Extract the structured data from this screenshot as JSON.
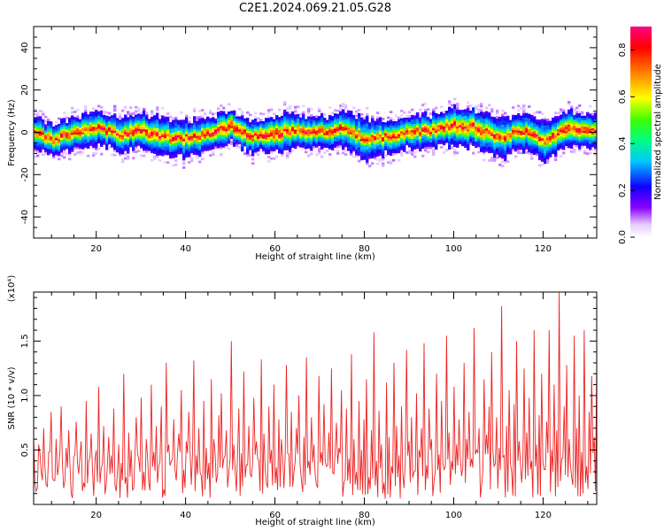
{
  "title": "C2E1.2024.069.21.05.G28",
  "colors": {
    "snr_line": "#ee2222",
    "axis": "#000000",
    "colormap": [
      "#ffffff",
      "#d9b3ff",
      "#7a00ff",
      "#0000ff",
      "#00e5ff",
      "#00ff66",
      "#b8ff00",
      "#ffee00",
      "#ff8a00",
      "#ff0000",
      "#ff0080"
    ]
  },
  "chart_data": [
    {
      "type": "heatmap",
      "xlabel": "Height of straight line (km)",
      "ylabel": "Frequency (Hz)",
      "xlim": [
        6,
        132
      ],
      "ylim": [
        -50,
        50
      ],
      "xticks": [
        20,
        40,
        60,
        80,
        100,
        120
      ],
      "yticks": [
        -40,
        -20,
        0,
        20,
        40
      ],
      "xtick_labels": [
        "20",
        "40",
        "60",
        "80",
        "100",
        "120"
      ],
      "ytick_labels": [
        "-40",
        "-20",
        "0",
        "20",
        "40"
      ],
      "colorbar": {
        "label": "Normalized spectral amplitude",
        "range": [
          0.0,
          0.9
        ],
        "ticks": [
          0.0,
          0.2,
          0.4,
          0.6,
          0.8
        ],
        "tick_labels": [
          "0.0",
          "0.2",
          "0.4",
          "0.6",
          "0.8"
        ],
        "colormap": "rainbow (white-purple-blue-cyan-green-yellow-orange-red-magenta)"
      },
      "ridge": {
        "description": "narrow band of high amplitude centered near 0 Hz across all heights",
        "x": [
          6,
          10,
          15,
          20,
          25,
          30,
          35,
          40,
          45,
          50,
          55,
          60,
          65,
          70,
          75,
          80,
          85,
          90,
          95,
          100,
          105,
          110,
          115,
          120,
          125,
          132
        ],
        "center_freq": [
          0,
          -3,
          0,
          2,
          -1,
          1,
          -2,
          -3,
          0,
          3,
          -2,
          0,
          1,
          0,
          2,
          -3,
          -2,
          0,
          1,
          3,
          2,
          -3,
          1,
          -4,
          2,
          0
        ],
        "core_half_width_hz": [
          3,
          3,
          3,
          3,
          3,
          4,
          3,
          3,
          3,
          4,
          3,
          4,
          3,
          3,
          3,
          3,
          3,
          3,
          3,
          4,
          4,
          3,
          3,
          3,
          4,
          3
        ],
        "halo_half_width_hz": [
          6,
          6,
          6,
          7,
          6,
          7,
          8,
          7,
          6,
          6,
          6,
          7,
          6,
          6,
          7,
          9,
          6,
          6,
          6,
          8,
          7,
          8,
          7,
          8,
          7,
          6
        ]
      }
    },
    {
      "type": "line",
      "xlabel": "Height of straight line (km)",
      "ylabel": "SNR (10 * v/v)",
      "y_multiplier_label": "(x10⁴)",
      "xlim": [
        6,
        132
      ],
      "ylim": [
        0,
        1.95
      ],
      "xticks": [
        20,
        40,
        60,
        80,
        100,
        120
      ],
      "yticks": [
        0.5,
        1.0,
        1.5
      ],
      "xtick_labels": [
        "20",
        "40",
        "60",
        "80",
        "100",
        "120"
      ],
      "ytick_labels": [
        "0.5",
        "1.0",
        "1.5"
      ],
      "series": [
        {
          "x_start": 6,
          "x_end": 132,
          "values": [
            0.62,
            0.12,
            0.55,
            0.3,
            0.7,
            0.18,
            0.48,
            0.85,
            0.22,
            0.6,
            0.35,
            0.9,
            0.15,
            0.52,
            0.68,
            0.1,
            0.44,
            0.76,
            0.28,
            0.58,
            0.2,
            0.95,
            0.4,
            0.65,
            0.08,
            0.5,
            1.08,
            0.33,
            0.72,
            0.18,
            0.62,
            0.45,
            0.88,
            0.12,
            0.55,
            0.38,
            1.2,
            0.25,
            0.66,
            0.5,
            0.15,
            0.8,
            0.42,
            0.98,
            0.3,
            0.6,
            0.2,
            1.1,
            0.48,
            0.72,
            0.35,
            0.9,
            0.14,
            1.3,
            0.55,
            0.4,
            0.78,
            0.22,
            0.65,
            1.05,
            0.32,
            0.58,
            0.85,
            0.18,
            1.32,
            0.45,
            0.7,
            0.26,
            0.95,
            0.52,
            0.38,
            1.15,
            0.6,
            0.2,
            0.82,
            1.02,
            0.42,
            0.68,
            0.3,
            1.5,
            0.55,
            0.12,
            0.88,
            0.47,
            1.22,
            0.36,
            0.72,
            0.25,
            0.98,
            0.58,
            0.4,
            1.33,
            0.65,
            0.2,
            0.9,
            0.5,
            1.1,
            0.34,
            0.78,
            0.6,
            0.15,
            1.28,
            0.46,
            0.85,
            0.3,
            0.7,
            1.0,
            0.22,
            0.62,
            1.35,
            0.4,
            0.8,
            0.55,
            0.18,
            1.18,
            0.48,
            0.92,
            0.35,
            0.66,
            1.25,
            0.28,
            0.75,
            0.52,
            1.05,
            0.2,
            0.88,
            0.42,
            1.38,
            0.6,
            0.3,
            0.95,
            0.5,
            0.78,
            1.15,
            0.25,
            0.68,
            1.58,
            0.4,
            0.86,
            0.55,
            0.2,
            1.12,
            0.62,
            0.35,
            1.3,
            0.72,
            0.45,
            0.9,
            0.15,
            1.42,
            0.58,
            0.8,
            0.3,
            1.02,
            0.5,
            0.7,
            1.48,
            0.36,
            0.88,
            0.6,
            0.22,
            1.2,
            0.46,
            0.95,
            0.32,
            1.55,
            0.66,
            0.4,
            1.08,
            0.55,
            0.78,
            0.26,
            1.3,
            0.6,
            0.85,
            0.42,
            1.62,
            0.5,
            0.7,
            0.18,
            1.15,
            0.64,
            0.9,
            1.4,
            0.35,
            0.8,
            0.52,
            1.82,
            0.45,
            0.72,
            1.05,
            0.3,
            0.92,
            1.5,
            0.58,
            0.2,
            1.25,
            0.66,
            0.98,
            0.4,
            1.6,
            0.55,
            0.82,
            1.2,
            0.32,
            0.76,
            1.6,
            0.5,
            1.1,
            0.68,
            1.95,
            0.42,
            0.9,
            1.28,
            0.6,
            0.25,
            1.55,
            0.7,
            1.0,
            0.48,
            1.6,
            0.35,
            0.85,
            1.18,
            0.62,
            1.3
          ]
        }
      ]
    }
  ]
}
